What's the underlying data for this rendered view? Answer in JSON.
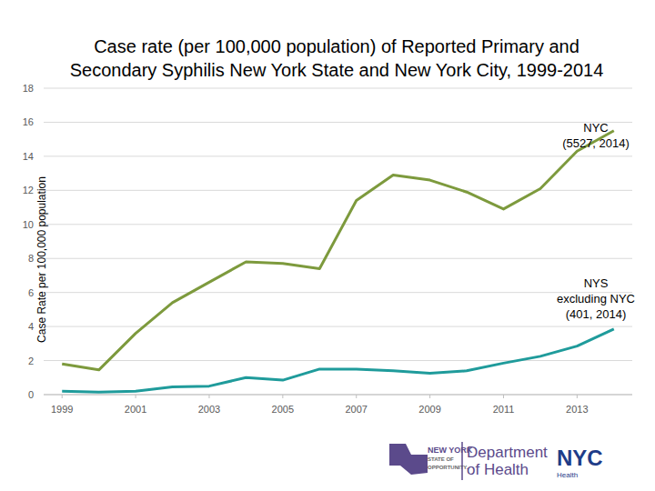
{
  "chart_data": {
    "type": "line",
    "title": [
      "Case rate (per 100,000 population) of Reported Primary and",
      "Secondary Syphilis New York State and New York City, 1999-2014"
    ],
    "y_label": "Case Rate per 100,000 population",
    "x": [
      1999,
      2000,
      2001,
      2002,
      2003,
      2004,
      2005,
      2006,
      2007,
      2008,
      2009,
      2010,
      2011,
      2012,
      2013,
      2014
    ],
    "series": [
      {
        "name": "NYC",
        "color": "#7d9a3d",
        "values": [
          1.8,
          1.45,
          3.6,
          5.4,
          6.6,
          7.8,
          7.7,
          7.4,
          11.4,
          12.9,
          12.6,
          11.9,
          10.9,
          12.1,
          14.3,
          15.5
        ]
      },
      {
        "name": "NYS excluding NYC",
        "color": "#1f9b9b",
        "values": [
          0.2,
          0.15,
          0.2,
          0.45,
          0.5,
          1.0,
          0.85,
          1.5,
          1.5,
          1.4,
          1.25,
          1.4,
          1.85,
          2.25,
          2.85,
          3.85
        ]
      }
    ],
    "annotations": [
      {
        "lines": [
          "NYC",
          "(5527, 2014)"
        ]
      },
      {
        "lines": [
          "NYS",
          "excluding NYC",
          "(401, 2014)"
        ]
      }
    ],
    "xlim": [
      1998.5,
      2014.5
    ],
    "xticks": [
      1999,
      2001,
      2003,
      2005,
      2007,
      2009,
      2011,
      2013
    ],
    "ylim": [
      0,
      18
    ],
    "yticks": [
      0,
      2,
      4,
      6,
      8,
      10,
      12,
      14,
      16,
      18
    ],
    "grid": true,
    "logos": {
      "nys": [
        "NEW YORK",
        "STATE OF",
        "OPPORTUNITY."
      ],
      "department": [
        "Department",
        "of Health"
      ],
      "nyc": [
        "NYC",
        "Health"
      ]
    }
  }
}
